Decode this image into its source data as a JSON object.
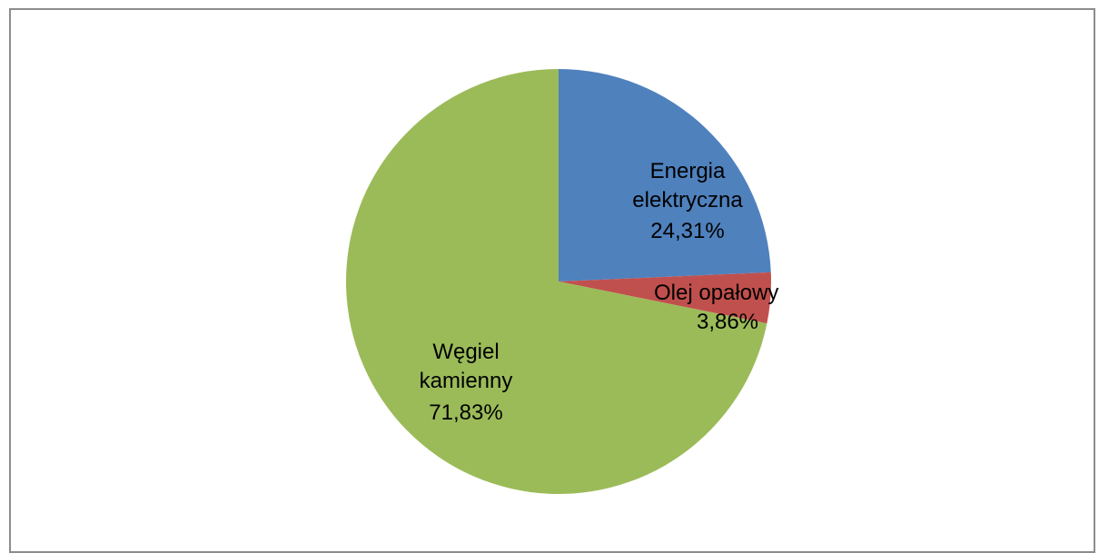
{
  "chart_data": {
    "type": "pie",
    "title": "",
    "slices": [
      {
        "label_line1": "Energia",
        "label_line2": "elektryczna",
        "percent_text": "24,31%",
        "value": 24.31,
        "color": "#4f81bd"
      },
      {
        "label_line1": "Olej opałowy",
        "label_line2": "",
        "percent_text": "3,86%",
        "value": 3.86,
        "color": "#c0504d"
      },
      {
        "label_line1": "Węgiel",
        "label_line2": "kamienny",
        "percent_text": "71,83%",
        "value": 71.83,
        "color": "#9bbb59"
      }
    ],
    "legend": "none",
    "start_angle_deg": 0,
    "direction": "clockwise"
  }
}
